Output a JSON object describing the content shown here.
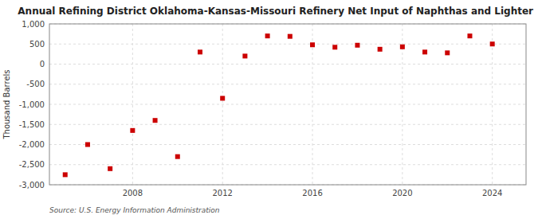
{
  "chart_data": {
    "type": "scatter",
    "title": "Annual Refining District Oklahoma-Kansas-Missouri Refinery Net Input of Naphthas and Lighter",
    "y_label": "Thousand Barrels",
    "annotations": [
      "Source: U.S. Energy Information Administration"
    ],
    "x": [
      2005,
      2006,
      2007,
      2008,
      2009,
      2010,
      2011,
      2012,
      2013,
      2014,
      2015,
      2016,
      2017,
      2018,
      2019,
      2020,
      2021,
      2022,
      2023,
      2024
    ],
    "values": [
      -2750,
      -2000,
      -2600,
      -1650,
      -1400,
      -2300,
      300,
      -850,
      200,
      700,
      690,
      480,
      420,
      470,
      370,
      430,
      300,
      280,
      700,
      500
    ],
    "color": "#cc0000",
    "marker": "square",
    "xlim": [
      2004.3,
      2025.5
    ],
    "xticks": [
      2008,
      2012,
      2016,
      2020,
      2024
    ],
    "ylim": [
      -3000,
      1000
    ],
    "yticks": [
      {
        "value": -3000,
        "label": "-3,000"
      },
      {
        "value": -2500,
        "label": "-2,500"
      },
      {
        "value": -2000,
        "label": "-2,000"
      },
      {
        "value": -1500,
        "label": "-1,500"
      },
      {
        "value": -1000,
        "label": "-1,000"
      },
      -500,
      0,
      500,
      {
        "value": 1000,
        "label": "1,000"
      }
    ],
    "grid": true
  }
}
